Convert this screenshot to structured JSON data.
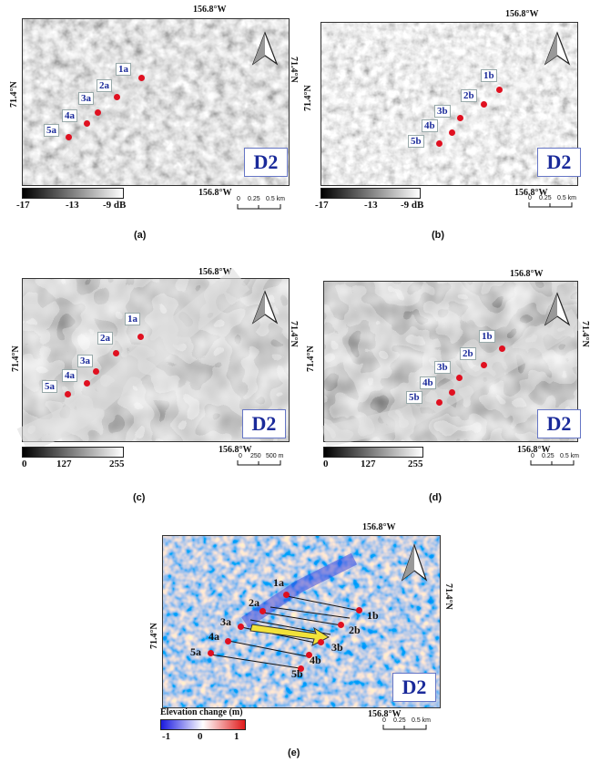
{
  "panels": [
    {
      "caption": "(a)",
      "lon": "156.8°W",
      "lon_bottom": "156.8°W",
      "lat": "71.4°N",
      "badge": "D2",
      "colorbar": {
        "ticks": [
          "-17",
          "-13",
          "-9 dB"
        ]
      },
      "scale": {
        "labels": [
          "0",
          "0.25",
          "0.5 km"
        ]
      },
      "points": [
        "1a",
        "2a",
        "3a",
        "4a",
        "5a"
      ]
    },
    {
      "caption": "(b)",
      "lon": "156.8°W",
      "lon_bottom": "156.8°W",
      "lat": "71.4°N",
      "badge": "D2",
      "colorbar": {
        "ticks": [
          "-17",
          "-13",
          "-9 dB"
        ]
      },
      "scale": {
        "labels": [
          "0",
          "0.25",
          "0.5 km"
        ]
      },
      "points": [
        "1b",
        "2b",
        "3b",
        "4b",
        "5b"
      ]
    },
    {
      "caption": "(c)",
      "lon": "156.8°W",
      "lon_bottom": "156.8°W",
      "lat": "71.4°N",
      "badge": "D2",
      "colorbar": {
        "ticks": [
          "0",
          "127",
          "255"
        ]
      },
      "scale": {
        "labels": [
          "0",
          "250",
          "500 m"
        ]
      },
      "points": [
        "1a",
        "2a",
        "3a",
        "4a",
        "5a"
      ]
    },
    {
      "caption": "(d)",
      "lon": "156.8°W",
      "lon_bottom": "156.8°W",
      "lat": "71.4°N",
      "badge": "D2",
      "colorbar": {
        "ticks": [
          "0",
          "127",
          "255"
        ]
      },
      "scale": {
        "labels": [
          "0",
          "0.25",
          "0.5 km"
        ]
      },
      "points": [
        "1b",
        "2b",
        "3b",
        "4b",
        "5b"
      ]
    },
    {
      "caption": "(e)",
      "lon": "156.8°W",
      "lon_bottom": "156.8°W",
      "lat": "71.4°N",
      "badge": "D2",
      "colorbar": {
        "title": "Elevation change (m)",
        "ticks": [
          "-1",
          "0",
          "1"
        ]
      },
      "scale": {
        "labels": [
          "0",
          "0.25",
          "0.5 km"
        ]
      },
      "points_a": [
        "1a",
        "2a",
        "3a",
        "4a",
        "5a"
      ],
      "points_b": [
        "1b",
        "2b",
        "3b",
        "4b",
        "5b"
      ]
    }
  ],
  "colors": {
    "point": "#e01020",
    "badge_text": "#1a2a9a",
    "arrow": "#f2e23a"
  }
}
